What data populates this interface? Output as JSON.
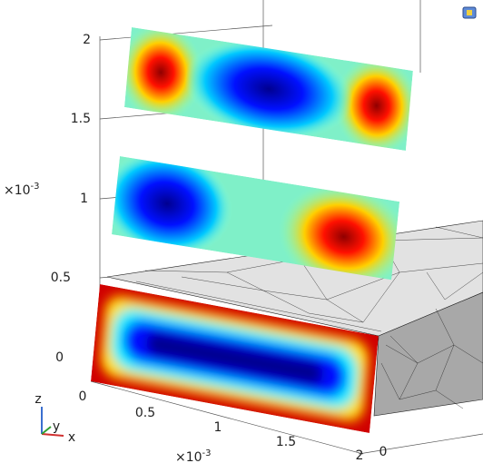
{
  "z_axis": {
    "ticks": [
      "2",
      "1.5",
      "1",
      "0.5",
      "0"
    ],
    "scale": {
      "base": "×10",
      "exponent": "-3"
    }
  },
  "x_axis": {
    "ticks": [
      "0",
      "0.5",
      "1",
      "1.5",
      "2"
    ],
    "scale": {
      "base": "×10",
      "exponent": "-3"
    }
  },
  "y_axis": {
    "ticks": [
      "0"
    ]
  },
  "triad": {
    "z": "z",
    "y": "y",
    "x": "x"
  }
}
